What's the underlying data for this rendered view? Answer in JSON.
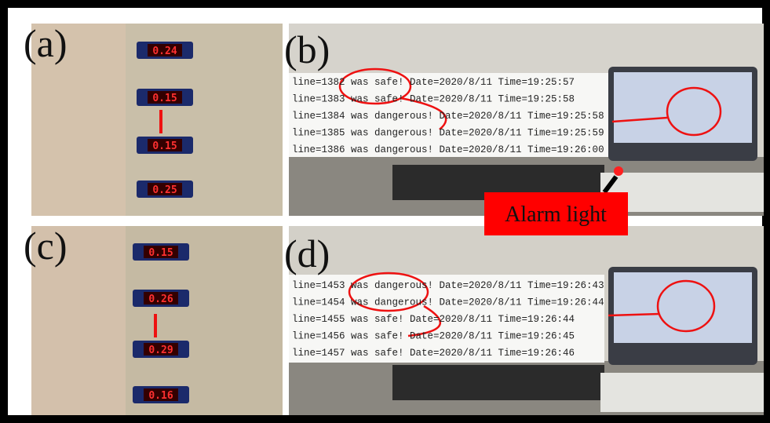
{
  "panels": [
    {
      "label": "(a)",
      "readings": [
        "0.24",
        "0.15",
        "0.15",
        "0.25"
      ]
    },
    {
      "label": "(b)",
      "log": [
        "line=1382 was safe! Date=2020/8/11 Time=19:25:57",
        "line=1383 was safe! Date=2020/8/11 Time=19:25:58",
        "line=1384 was dangerous! Date=2020/8/11 Time=19:25:58",
        "line=1385 was dangerous! Date=2020/8/11 Time=19:25:59",
        "line=1386 was dangerous! Date=2020/8/11 Time=19:26:00"
      ],
      "callout": "Alarm light"
    },
    {
      "label": "(c)",
      "readings": [
        "0.15",
        "0.26",
        "0.29",
        "0.16"
      ]
    },
    {
      "label": "(d)",
      "log": [
        "line=1453 was dangerous! Date=2020/8/11 Time=19:26:43",
        "line=1454 was dangerous! Date=2020/8/11 Time=19:26:44",
        "line=1455 was safe! Date=2020/8/11 Time=19:26:44",
        "line=1456 was safe! Date=2020/8/11 Time=19:26:45",
        "line=1457 was safe! Date=2020/8/11 Time=19:26:46"
      ]
    }
  ]
}
